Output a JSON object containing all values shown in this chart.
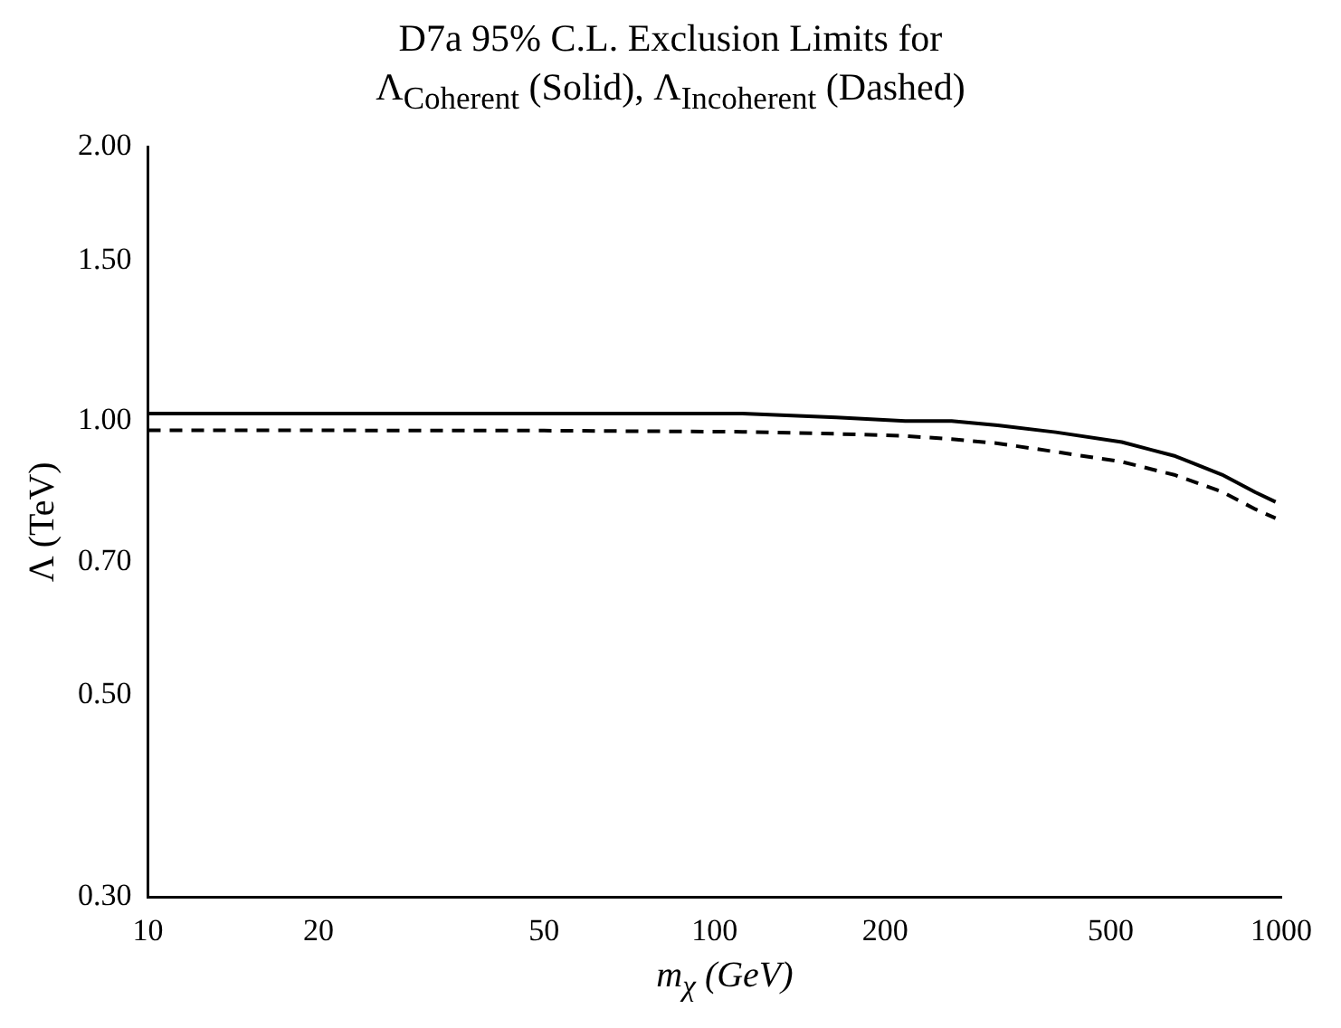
{
  "chart_data": {
    "type": "line",
    "title": "D7a 95% C.L. Exclusion Limits for",
    "subtitle": "Λ$_{Coherent}$ (Solid), Λ$_{Incoherent}$ (Dashed)",
    "xlabel": "m$_{χ}$ (GeV)",
    "ylabel": "Λ (TeV)",
    "log": "xy",
    "xlim": [
      10,
      1000
    ],
    "ylim": [
      0.3,
      2.0
    ],
    "xticks": [
      10,
      20,
      50,
      100,
      200,
      500,
      1000
    ],
    "yticks": [
      {
        "value": 0.3,
        "label": "0.30"
      },
      {
        "value": 0.5,
        "label": "0.50"
      },
      {
        "value": 0.7,
        "label": "0.70"
      },
      {
        "value": 1.0,
        "label": "1.00"
      },
      {
        "value": 1.5,
        "label": "1.50"
      },
      {
        "value": 2.0,
        "label": "2.00"
      }
    ],
    "grid": false,
    "legend": false,
    "marker": "none",
    "series": [
      {
        "color": "#000000",
        "line_style": "solid",
        "x": [
          10,
          50,
          112,
          164,
          217,
          262,
          316,
          400,
          523,
          650,
          786,
          900,
          977
        ],
        "values": [
          1.019,
          1.019,
          1.019,
          1.009,
          1.0,
          1.0,
          0.989,
          0.972,
          0.948,
          0.915,
          0.873,
          0.835,
          0.815
        ]
      },
      {
        "color": "#000000",
        "line_style": "dashed",
        "x": [
          10,
          50,
          112,
          164,
          217,
          262,
          316,
          400,
          523,
          650,
          786,
          900,
          977
        ],
        "values": [
          0.977,
          0.976,
          0.973,
          0.968,
          0.963,
          0.955,
          0.945,
          0.925,
          0.902,
          0.872,
          0.836,
          0.8,
          0.782
        ]
      }
    ]
  }
}
